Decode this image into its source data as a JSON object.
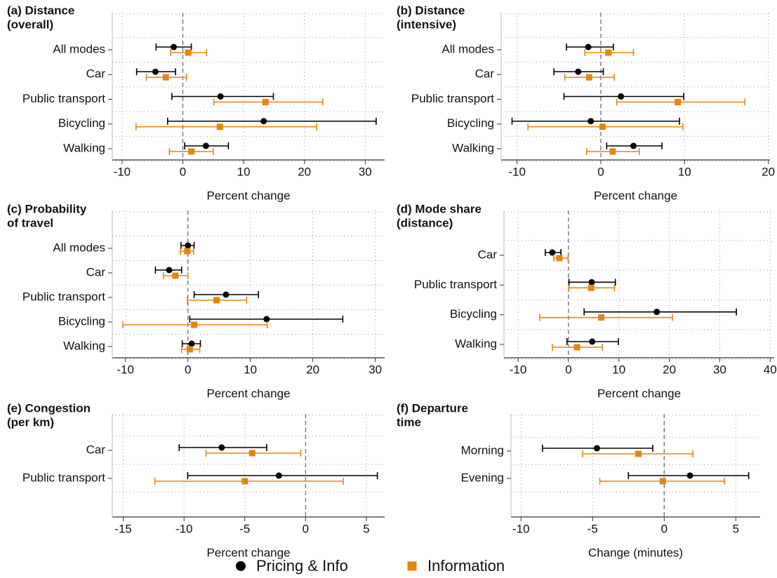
{
  "chart_data": [
    {
      "type": "errorbar",
      "title": [
        "(a) Distance",
        "(overall)"
      ],
      "xlabel": "Percent change",
      "categories": [
        "All modes",
        "Car",
        "Public transport",
        "Bicycling",
        "Walking"
      ],
      "series": [
        {
          "values": [
            -1.5,
            -4.5,
            6.2,
            13.3,
            3.8
          ],
          "lower": [
            -4.4,
            -7.6,
            -1.8,
            -2.5,
            0.3
          ],
          "upper": [
            1.4,
            -1.2,
            14.9,
            31.8,
            7.5
          ]
        },
        {
          "values": [
            0.9,
            -2.8,
            13.6,
            6.1,
            1.4
          ],
          "lower": [
            -2.0,
            -6.0,
            5.1,
            -7.7,
            -2.2
          ],
          "upper": [
            3.9,
            0.6,
            23.0,
            22.0,
            5.0
          ]
        }
      ],
      "xlim": [
        -11.6,
        33.2
      ],
      "xticks": [
        -10,
        0,
        10,
        20,
        30
      ],
      "reference_line": 0,
      "grid": true
    },
    {
      "type": "errorbar",
      "title": [
        "(b) Distance",
        "(intensive)"
      ],
      "xlabel": "Percent change",
      "categories": [
        "All modes",
        "Car",
        "Public transport",
        "Bicycling",
        "Walking"
      ],
      "series": [
        {
          "values": [
            -1.5,
            -2.7,
            2.4,
            -1.2,
            3.9
          ],
          "lower": [
            -4.1,
            -5.6,
            -4.4,
            -10.6,
            0.7
          ],
          "upper": [
            1.5,
            0.3,
            9.9,
            9.4,
            7.3
          ]
        },
        {
          "values": [
            0.9,
            -1.4,
            9.2,
            0.2,
            1.4
          ],
          "lower": [
            -1.9,
            -4.3,
            1.9,
            -8.7,
            -1.7
          ],
          "upper": [
            3.9,
            1.6,
            17.2,
            9.8,
            4.6
          ]
        }
      ],
      "xlim": [
        -11.9,
        20.2
      ],
      "xticks": [
        -10,
        0,
        10,
        20
      ],
      "reference_line": 0,
      "grid": true
    },
    {
      "type": "errorbar",
      "title": [
        "(c) Probability",
        "of travel"
      ],
      "xlabel": "Percent change",
      "categories": [
        "All modes",
        "Car",
        "Public transport",
        "Bicycling",
        "Walking"
      ],
      "series": [
        {
          "values": [
            0,
            -3.0,
            6.1,
            12.6,
            0.6
          ],
          "lower": [
            -1.1,
            -5.2,
            1.0,
            0.3,
            -0.9
          ],
          "upper": [
            1.0,
            -1.0,
            11.3,
            24.8,
            2.0
          ]
        },
        {
          "values": [
            -0.1,
            -2.0,
            4.6,
            1.0,
            0.3
          ],
          "lower": [
            -1.2,
            -3.9,
            -0.1,
            -10.4,
            -1.0
          ],
          "upper": [
            0.9,
            0.0,
            9.4,
            12.7,
            1.9
          ]
        }
      ],
      "xlim": [
        -12.1,
        31.5
      ],
      "xticks": [
        -10,
        0,
        10,
        20,
        30
      ],
      "reference_line": 0,
      "grid": true
    },
    {
      "type": "errorbar",
      "title": [
        "(d) Mode share",
        "(distance)"
      ],
      "xlabel": "Percent change",
      "categories": [
        "Car",
        "Public transport",
        "Bicycling",
        "Walking"
      ],
      "series": [
        {
          "values": [
            -3.2,
            4.6,
            17.5,
            4.7
          ],
          "lower": [
            -4.6,
            0.1,
            3.1,
            -0.3
          ],
          "upper": [
            -1.5,
            9.3,
            33.3,
            9.9
          ]
        },
        {
          "values": [
            -1.8,
            4.5,
            6.5,
            1.7
          ],
          "lower": [
            -2.9,
            0,
            -5.7,
            -3.2
          ],
          "upper": [
            -0.1,
            9.1,
            20.6,
            6.7
          ]
        }
      ],
      "xlim": [
        -12.8,
        40.8
      ],
      "xticks": [
        -10,
        0,
        10,
        20,
        30,
        40
      ],
      "reference_line": 0,
      "grid": true
    },
    {
      "type": "errorbar",
      "title": [
        "(e) Congestion",
        "(per km)"
      ],
      "xlabel": "Percent change",
      "categories": [
        "Car",
        "Public transport"
      ],
      "series": [
        {
          "values": [
            -6.9,
            -2.2
          ],
          "lower": [
            -10.4,
            -9.7
          ],
          "upper": [
            -3.2,
            5.9
          ]
        },
        {
          "values": [
            -4.4,
            -5.0
          ],
          "lower": [
            -8.2,
            -12.4
          ],
          "upper": [
            -0.4,
            3.1
          ]
        }
      ],
      "xlim": [
        -15.9,
        6.5
      ],
      "xticks": [
        -15,
        -10,
        -5,
        0,
        5
      ],
      "reference_line": 0,
      "grid": true
    },
    {
      "type": "errorbar",
      "title": [
        "(f) Departure",
        "time"
      ],
      "xlabel": "Change (minutes)",
      "categories": [
        "Morning",
        "Evening"
      ],
      "series": [
        {
          "values": [
            -4.7,
            1.8
          ],
          "lower": [
            -8.5,
            -2.5
          ],
          "upper": [
            -0.8,
            5.9
          ]
        },
        {
          "values": [
            -1.8,
            -0.1
          ],
          "lower": [
            -5.7,
            -4.5
          ],
          "upper": [
            2.0,
            4.2
          ]
        }
      ],
      "xlim": [
        -10.7,
        6.7
      ],
      "xticks": [
        -10,
        -5,
        0,
        5
      ],
      "reference_line": 0,
      "grid": true
    }
  ],
  "legend": [
    {
      "name": "Pricing & Info",
      "color": "#000000",
      "marker": "circle"
    },
    {
      "name": "Information",
      "color": "#e3870e",
      "marker": "square"
    }
  ]
}
